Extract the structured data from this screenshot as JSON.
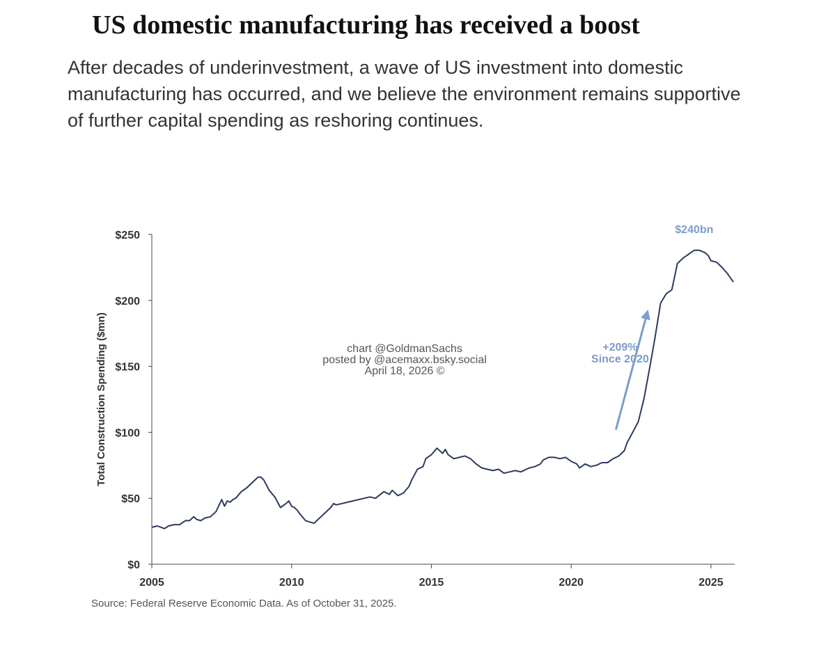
{
  "header": {
    "title": "US domestic manufacturing has received a boost",
    "subtitle": "After decades of underinvestment, a wave of US investment into domestic manufacturing has occurred, and we believe the environment remains supportive of further capital spending as reshoring continues."
  },
  "footer": {
    "source": "Source: Federal Reserve Economic Data. As of October 31, 2025."
  },
  "watermark": {
    "line1": "chart @GoldmanSachs",
    "line2": "posted by @acemaxx.bsky.social",
    "line3": "April 18, 2026 ©"
  },
  "colors": {
    "line": "#2d3a5e",
    "annotation": "#7b9ccc",
    "axis": "#444444",
    "watermark": "#555555"
  },
  "chart_data": {
    "type": "line",
    "title": "",
    "xlabel": "",
    "ylabel": "Total Construction Spending ($mn)",
    "xlim": [
      2005,
      2025.85
    ],
    "ylim": [
      0,
      250
    ],
    "x_ticks": [
      2005,
      2010,
      2015,
      2020,
      2025
    ],
    "x_tick_labels": [
      "2005",
      "2010",
      "2015",
      "2020",
      "2025"
    ],
    "y_ticks": [
      0,
      50,
      100,
      150,
      200,
      250
    ],
    "y_tick_labels": [
      "$0",
      "$50",
      "$100",
      "$150",
      "$200",
      "$250"
    ],
    "grid": false,
    "series": [
      {
        "name": "",
        "x": [
          2005.0,
          2005.2,
          2005.45,
          2005.6,
          2005.8,
          2006.0,
          2006.2,
          2006.35,
          2006.5,
          2006.6,
          2006.75,
          2006.9,
          2007.1,
          2007.3,
          2007.5,
          2007.6,
          2007.7,
          2007.8,
          2007.9,
          2008.0,
          2008.2,
          2008.4,
          2008.6,
          2008.8,
          2008.9,
          2009.0,
          2009.1,
          2009.2,
          2009.4,
          2009.6,
          2009.8,
          2009.9,
          2010.0,
          2010.1,
          2010.2,
          2010.3,
          2010.5,
          2010.8,
          2011.0,
          2011.2,
          2011.4,
          2011.5,
          2011.6,
          2011.8,
          2012.0,
          2012.2,
          2012.4,
          2012.6,
          2012.8,
          2013.0,
          2013.3,
          2013.5,
          2013.6,
          2013.8,
          2014.0,
          2014.2,
          2014.3,
          2014.5,
          2014.7,
          2014.8,
          2015.0,
          2015.2,
          2015.4,
          2015.5,
          2015.6,
          2015.8,
          2016.0,
          2016.2,
          2016.4,
          2016.6,
          2016.8,
          2017.0,
          2017.2,
          2017.4,
          2017.6,
          2017.8,
          2018.0,
          2018.2,
          2018.5,
          2018.7,
          2018.9,
          2019.0,
          2019.2,
          2019.4,
          2019.6,
          2019.8,
          2020.0,
          2020.2,
          2020.3,
          2020.5,
          2020.7,
          2020.9,
          2021.1,
          2021.3,
          2021.5,
          2021.7,
          2021.9,
          2022.0,
          2022.2,
          2022.4,
          2022.6,
          2022.8,
          2023.0,
          2023.2,
          2023.4,
          2023.6,
          2023.8,
          2024.0,
          2024.2,
          2024.4,
          2024.6,
          2024.8,
          2024.9,
          2025.0,
          2025.2,
          2025.4,
          2025.6,
          2025.8
        ],
        "values": [
          28,
          29,
          27,
          29,
          30,
          30,
          33,
          33,
          36,
          34,
          33,
          35,
          36,
          40,
          49,
          44,
          48,
          47,
          49,
          50,
          55,
          58,
          62,
          66,
          66,
          64,
          60,
          56,
          51,
          43,
          46,
          48,
          44,
          43,
          41,
          38,
          33,
          31,
          35,
          39,
          43,
          46,
          45,
          46,
          47,
          48,
          49,
          50,
          51,
          50,
          55,
          53,
          56,
          52,
          54,
          59,
          64,
          72,
          74,
          80,
          83,
          88,
          84,
          87,
          83,
          80,
          81,
          82,
          80,
          76,
          73,
          72,
          71,
          72,
          69,
          70,
          71,
          70,
          73,
          74,
          76,
          79,
          81,
          81,
          80,
          81,
          78,
          76,
          73,
          76,
          74,
          75,
          77,
          77,
          80,
          82,
          86,
          92,
          100,
          108,
          125,
          148,
          172,
          198,
          205,
          208,
          228,
          232,
          235,
          238,
          238,
          236,
          234,
          230,
          229,
          225,
          220,
          214
        ]
      }
    ],
    "annotations": [
      {
        "text": "+209%",
        "x": 2021.75,
        "y": 162
      },
      {
        "text": "Since 2020",
        "x": 2021.75,
        "y": 153
      },
      {
        "text": "$240bn",
        "x": 2024.4,
        "y": 251
      }
    ],
    "arrow": {
      "x_start": 2021.6,
      "y_start": 102,
      "x_end": 2022.75,
      "y_end": 193
    }
  }
}
